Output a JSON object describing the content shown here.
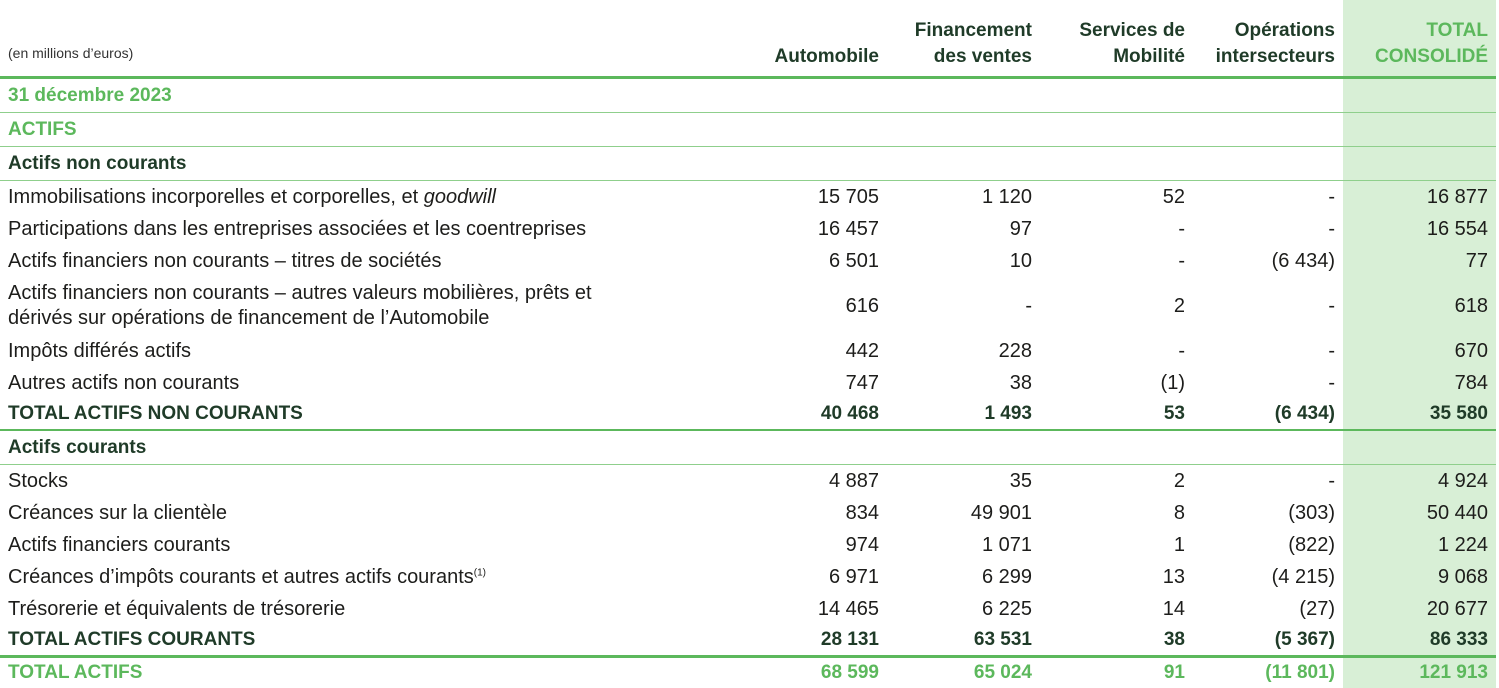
{
  "header": {
    "unit": "(en millions d’euros)",
    "col1": "Automobile",
    "col2_line1": "Financement",
    "col2_line2": "des ventes",
    "col3_line1": "Services de",
    "col3_line2": "Mobilité",
    "col4_line1": "Opérations",
    "col4_line2": "intersecteurs",
    "col5_line1": "TOTAL",
    "col5_line2": "CONSOLIDÉ"
  },
  "date_label": "31 décembre 2023",
  "actifs_label": "ACTIFS",
  "non_courants": {
    "heading": "Actifs non courants",
    "rows": [
      {
        "label": "Immobilisations incorporelles et corporelles, et ",
        "label_em": "goodwill",
        "v": [
          "15 705",
          "1 120",
          "52",
          "-",
          "16 877"
        ]
      },
      {
        "label": "Participations dans les entreprises associées et les coentreprises",
        "v": [
          "16 457",
          "97",
          "-",
          "-",
          "16 554"
        ]
      },
      {
        "label": "Actifs financiers non courants – titres de sociétés",
        "v": [
          "6 501",
          "10",
          "-",
          "(6 434)",
          "77"
        ]
      },
      {
        "label_l1": "Actifs financiers non courants – autres valeurs mobilières, prêts et",
        "label_l2": "dérivés sur opérations de financement de l’Automobile",
        "v": [
          "616",
          "-",
          "2",
          "-",
          "618"
        ]
      },
      {
        "label": "Impôts différés actifs",
        "v": [
          "442",
          "228",
          "-",
          "-",
          "670"
        ]
      },
      {
        "label": "Autres actifs non courants",
        "v": [
          "747",
          "38",
          "(1)",
          "-",
          "784"
        ]
      }
    ],
    "total": {
      "label": "TOTAL ACTIFS NON COURANTS",
      "v": [
        "40 468",
        "1 493",
        "53",
        "(6 434)",
        "35 580"
      ]
    }
  },
  "courants": {
    "heading": "Actifs courants",
    "rows": [
      {
        "label": "Stocks",
        "v": [
          "4 887",
          "35",
          "2",
          "-",
          "4 924"
        ]
      },
      {
        "label": "Créances sur la clientèle",
        "v": [
          "834",
          "49 901",
          "8",
          "(303)",
          "50 440"
        ]
      },
      {
        "label": "Actifs financiers courants",
        "v": [
          "974",
          "1 071",
          "1",
          "(822)",
          "1 224"
        ]
      },
      {
        "label": "Créances d’impôts courants et autres actifs courants",
        "note": "(1)",
        "v": [
          "6 971",
          "6 299",
          "13",
          "(4 215)",
          "9 068"
        ]
      },
      {
        "label": "Trésorerie et équivalents de trésorerie",
        "v": [
          "14 465",
          "6 225",
          "14",
          "(27)",
          "20 677"
        ]
      }
    ],
    "total": {
      "label": "TOTAL ACTIFS COURANTS",
      "v": [
        "28 131",
        "63 531",
        "38",
        "(5 367)",
        "86 333"
      ]
    }
  },
  "grand_total": {
    "label": "TOTAL ACTIFS",
    "v": [
      "68 599",
      "65 024",
      "91",
      "(11 801)",
      "121 913"
    ]
  }
}
